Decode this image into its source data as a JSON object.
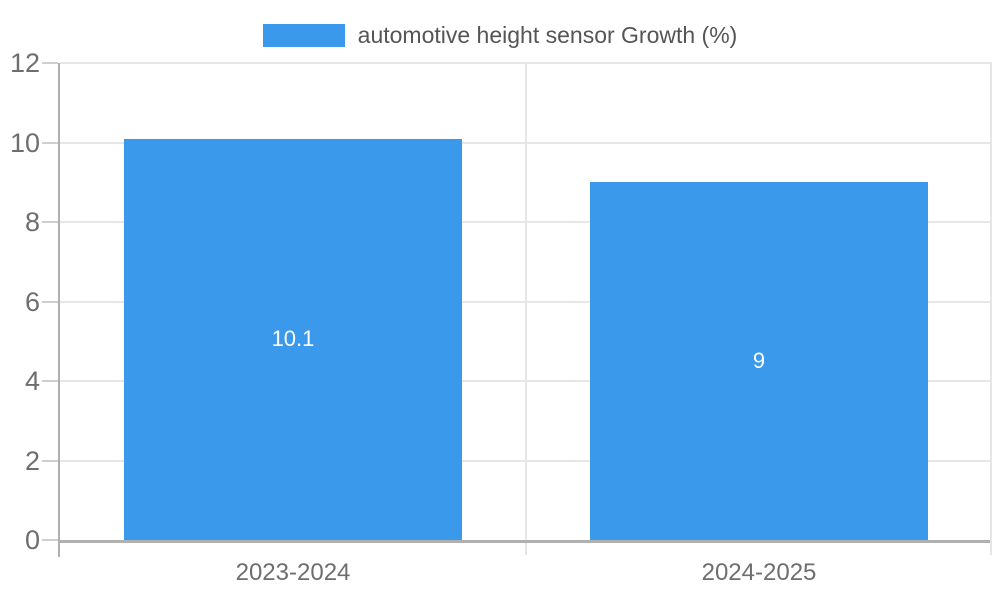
{
  "chart_data": {
    "type": "bar",
    "legend_label": "automotive height sensor Growth (%)",
    "legend_position": "top-center",
    "categories": [
      "2023-2024",
      "2024-2025"
    ],
    "values": [
      10.1,
      9
    ],
    "bar_labels": [
      "10.1",
      "9"
    ],
    "ylim": [
      0,
      12
    ],
    "yticks": [
      0,
      2,
      4,
      6,
      8,
      10,
      12
    ],
    "xlabel": "",
    "ylabel": "",
    "grid": true,
    "colors": {
      "bar": "#3b99ec",
      "bar_label": "#ffffff",
      "grid": "#e6e6e6",
      "axis": "#b0b0b0",
      "tick_label": "#6e6e6e",
      "legend_text": "#555555",
      "background": "#ffffff"
    }
  }
}
